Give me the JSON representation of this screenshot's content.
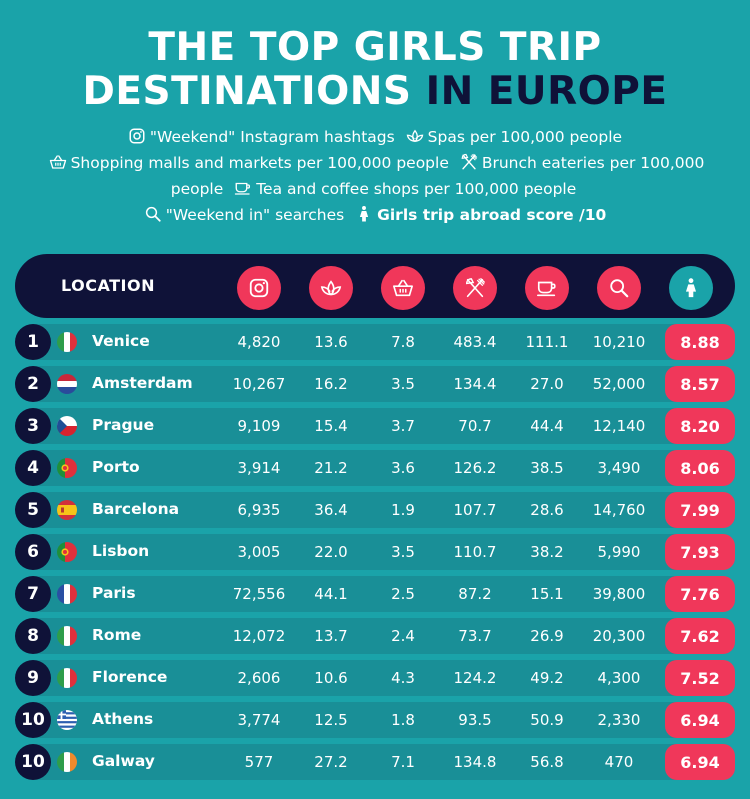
{
  "title": {
    "line1": "THE TOP GIRLS TRIP",
    "line2_white": "DESTINATIONS",
    "line2_dark": "IN EUROPE"
  },
  "legend": {
    "instagram": "\"Weekend\" Instagram hashtags",
    "spas": "Spas per 100,000 people",
    "malls": "Shopping malls and markets per 100,000 people",
    "brunch": "Brunch eateries per 100,000 people",
    "tea": "Tea and coffee shops per 100,000 people",
    "searches": "\"Weekend in\" searches",
    "score": "Girls trip abroad score /10"
  },
  "table": {
    "location_header": "LOCATION",
    "header_icons": [
      "instagram-icon",
      "spa-icon",
      "basket-icon",
      "cutlery-icon",
      "cup-icon",
      "search-icon",
      "person-icon"
    ],
    "colors": {
      "navy": "#0f1238",
      "red": "#f0375a",
      "teal": "#1aa3a9",
      "band": "#198f97"
    },
    "rows": [
      {
        "rank": "1",
        "city": "Venice",
        "flag": "italy",
        "instagram": "4,820",
        "spas": "13.6",
        "malls": "7.8",
        "brunch": "483.4",
        "tea": "111.1",
        "searches": "10,210",
        "score": "8.88"
      },
      {
        "rank": "2",
        "city": "Amsterdam",
        "flag": "netherlands",
        "instagram": "10,267",
        "spas": "16.2",
        "malls": "3.5",
        "brunch": "134.4",
        "tea": "27.0",
        "searches": "52,000",
        "score": "8.57"
      },
      {
        "rank": "3",
        "city": "Prague",
        "flag": "czech",
        "instagram": "9,109",
        "spas": "15.4",
        "malls": "3.7",
        "brunch": "70.7",
        "tea": "44.4",
        "searches": "12,140",
        "score": "8.20"
      },
      {
        "rank": "4",
        "city": "Porto",
        "flag": "portugal",
        "instagram": "3,914",
        "spas": "21.2",
        "malls": "3.6",
        "brunch": "126.2",
        "tea": "38.5",
        "searches": "3,490",
        "score": "8.06"
      },
      {
        "rank": "5",
        "city": "Barcelona",
        "flag": "spain",
        "instagram": "6,935",
        "spas": "36.4",
        "malls": "1.9",
        "brunch": "107.7",
        "tea": "28.6",
        "searches": "14,760",
        "score": "7.99"
      },
      {
        "rank": "6",
        "city": "Lisbon",
        "flag": "portugal",
        "instagram": "3,005",
        "spas": "22.0",
        "malls": "3.5",
        "brunch": "110.7",
        "tea": "38.2",
        "searches": "5,990",
        "score": "7.93"
      },
      {
        "rank": "7",
        "city": "Paris",
        "flag": "france",
        "instagram": "72,556",
        "spas": "44.1",
        "malls": "2.5",
        "brunch": "87.2",
        "tea": "15.1",
        "searches": "39,800",
        "score": "7.76"
      },
      {
        "rank": "8",
        "city": "Rome",
        "flag": "italy",
        "instagram": "12,072",
        "spas": "13.7",
        "malls": "2.4",
        "brunch": "73.7",
        "tea": "26.9",
        "searches": "20,300",
        "score": "7.62"
      },
      {
        "rank": "9",
        "city": "Florence",
        "flag": "italy",
        "instagram": "2,606",
        "spas": "10.6",
        "malls": "4.3",
        "brunch": "124.2",
        "tea": "49.2",
        "searches": "4,300",
        "score": "7.52"
      },
      {
        "rank": "10",
        "city": "Athens",
        "flag": "greece",
        "instagram": "3,774",
        "spas": "12.5",
        "malls": "1.8",
        "brunch": "93.5",
        "tea": "50.9",
        "searches": "2,330",
        "score": "6.94"
      },
      {
        "rank": "10",
        "city": "Galway",
        "flag": "ireland",
        "instagram": "577",
        "spas": "27.2",
        "malls": "7.1",
        "brunch": "134.8",
        "tea": "56.8",
        "searches": "470",
        "score": "6.94"
      }
    ]
  }
}
